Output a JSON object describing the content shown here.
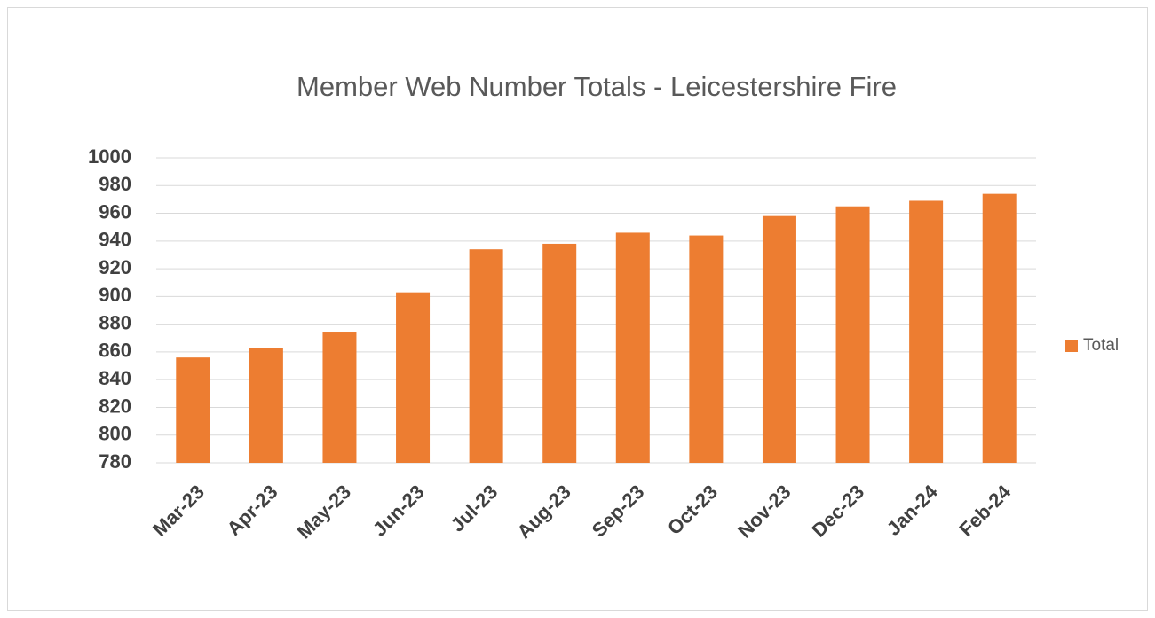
{
  "chart_data": {
    "type": "bar",
    "title": "Member Web Number Totals  -  Leicestershire Fire",
    "categories": [
      "Mar-23",
      "Apr-23",
      "May-23",
      "Jun-23",
      "Jul-23",
      "Aug-23",
      "Sep-23",
      "Oct-23",
      "Nov-23",
      "Dec-23",
      "Jan-24",
      "Feb-24"
    ],
    "series": [
      {
        "name": "Total",
        "color": "#ed7d31",
        "values": [
          856,
          863,
          874,
          903,
          934,
          938,
          946,
          944,
          958,
          965,
          969,
          974
        ]
      }
    ],
    "ylim": [
      780,
      1000
    ],
    "yticks": [
      780,
      800,
      820,
      840,
      860,
      880,
      900,
      920,
      940,
      960,
      980,
      1000
    ],
    "grid": true,
    "legend": "right"
  }
}
